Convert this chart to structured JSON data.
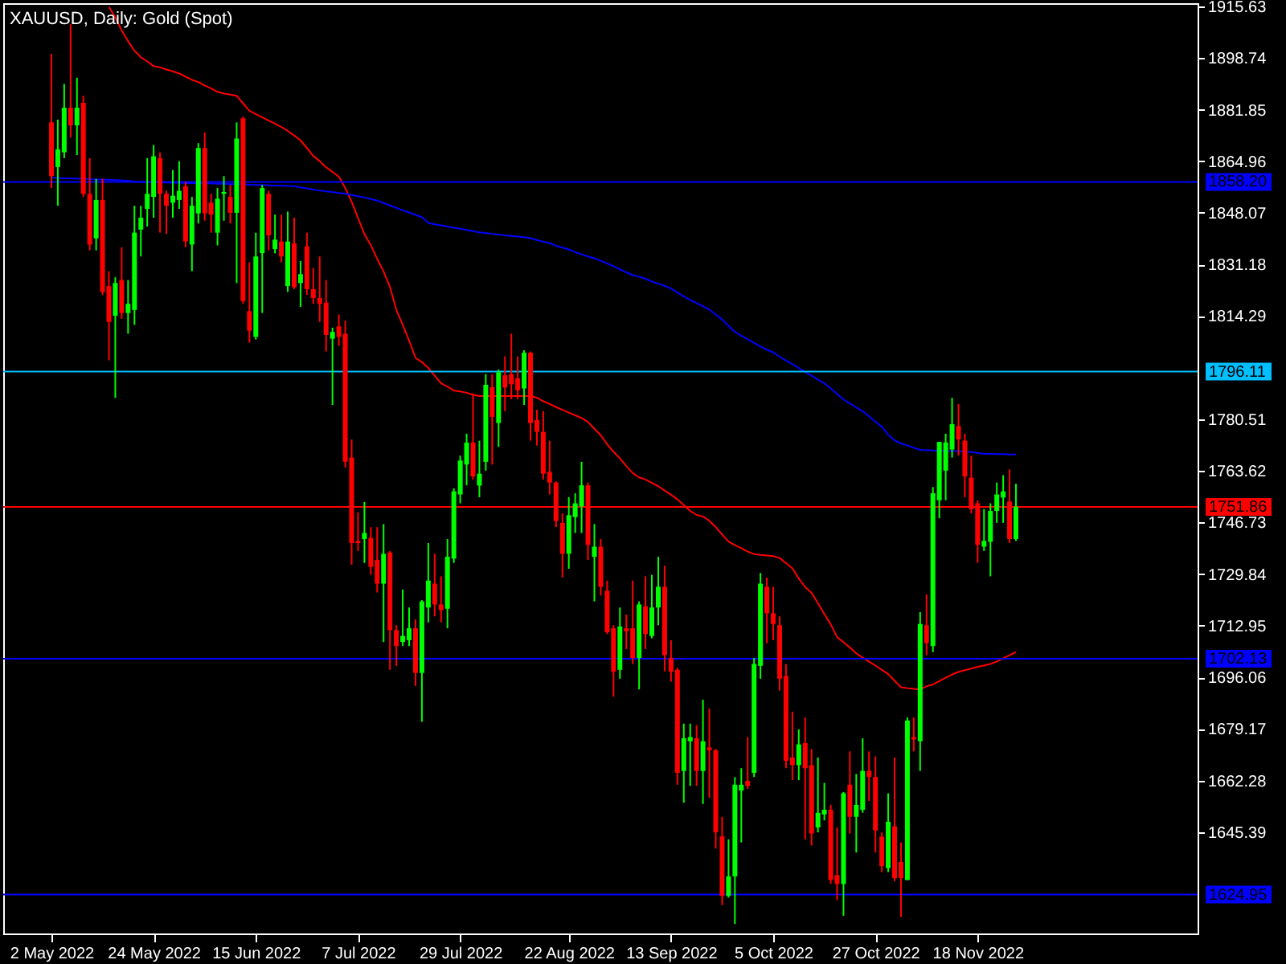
{
  "chart_data": {
    "type": "candlestick",
    "title": "XAUUSD, Daily:  Gold (Spot)",
    "categories": [
      "2 May 2022",
      null,
      null,
      null,
      null,
      null,
      null,
      null,
      null,
      null,
      null,
      null,
      null,
      null,
      null,
      null,
      "24 May 2022",
      null,
      null,
      null,
      null,
      null,
      null,
      null,
      null,
      null,
      null,
      null,
      null,
      null,
      null,
      null,
      "15 Jun 2022",
      null,
      null,
      null,
      null,
      null,
      null,
      null,
      null,
      null,
      null,
      null,
      null,
      null,
      null,
      null,
      "7 Jul 2022",
      null,
      null,
      null,
      null,
      null,
      null,
      null,
      null,
      null,
      null,
      null,
      null,
      null,
      null,
      null,
      "29 Jul 2022",
      null,
      null,
      null,
      null,
      null,
      null,
      null,
      null,
      null,
      null,
      null,
      null,
      null,
      null,
      null,
      null,
      "22 Aug 2022",
      null,
      null,
      null,
      null,
      null,
      null,
      null,
      null,
      null,
      null,
      null,
      null,
      null,
      null,
      null,
      "13 Sep 2022",
      null,
      null,
      null,
      null,
      null,
      null,
      null,
      null,
      null,
      null,
      null,
      null,
      null,
      null,
      null,
      "5 Oct 2022",
      null,
      null,
      null,
      null,
      null,
      null,
      null,
      null,
      null,
      null,
      null,
      null,
      null,
      null,
      null,
      "27 Oct 2022",
      null,
      null,
      null,
      null,
      null,
      null,
      null,
      null,
      null,
      null,
      null,
      null,
      null,
      null,
      null,
      "18 Nov 2022",
      null,
      null,
      null,
      null,
      null,
      null
    ],
    "ylim": [
      1612.2,
      1916.7
    ],
    "yticks": [
      1915.63,
      1898.74,
      1881.85,
      1864.96,
      1848.07,
      1831.18,
      1814.29,
      1780.51,
      1763.62,
      1746.73,
      1729.84,
      1712.95,
      1696.06,
      1679.17,
      1662.28,
      1645.39
    ],
    "grid": false,
    "ohlc": [
      [
        1877.7,
        1900.1,
        1856.2,
        1860.1
      ],
      [
        1863.1,
        1878.6,
        1850.4,
        1868.9
      ],
      [
        1867.9,
        1890.3,
        1866.0,
        1882.5
      ],
      [
        1882.5,
        1909.8,
        1872.8,
        1876.7
      ],
      [
        1876.7,
        1892.3,
        1867.0,
        1882.5
      ],
      [
        1884.1,
        1886.4,
        1853.3,
        1854.3
      ],
      [
        1854.3,
        1866.0,
        1835.8,
        1837.7
      ],
      [
        1839.7,
        1859.2,
        1835.8,
        1852.3
      ],
      [
        1852.3,
        1859.2,
        1821.2,
        1822.2
      ],
      [
        1824.1,
        1829.0,
        1799.8,
        1812.4
      ],
      [
        1814.4,
        1827.0,
        1787.5,
        1825.1
      ],
      [
        1826.1,
        1836.8,
        1813.4,
        1815.3
      ],
      [
        1815.3,
        1826.1,
        1808.5,
        1818.3
      ],
      [
        1816.3,
        1850.4,
        1811.4,
        1841.6
      ],
      [
        1842.6,
        1850.4,
        1833.8,
        1846.5
      ],
      [
        1849.4,
        1866.0,
        1843.6,
        1854.3
      ],
      [
        1853.3,
        1870.3,
        1846.5,
        1866.6
      ],
      [
        1866.0,
        1867.9,
        1841.6,
        1854.3
      ],
      [
        1854.3,
        1855.3,
        1841.2,
        1850.4
      ],
      [
        1851.4,
        1862.1,
        1846.5,
        1853.7
      ],
      [
        1852.3,
        1865.0,
        1849.4,
        1855.3
      ],
      [
        1856.8,
        1858.2,
        1836.8,
        1838.7
      ],
      [
        1837.7,
        1853.3,
        1829.0,
        1850.4
      ],
      [
        1847.9,
        1870.9,
        1844.6,
        1869.3
      ],
      [
        1869.3,
        1874.4,
        1845.5,
        1847.9
      ],
      [
        1851.4,
        1854.3,
        1841.6,
        1847.5
      ],
      [
        1841.6,
        1856.2,
        1837.4,
        1852.7
      ],
      [
        1854.3,
        1860.1,
        1845.5,
        1854.9
      ],
      [
        1853.3,
        1857.2,
        1844.6,
        1848.1
      ],
      [
        1848.1,
        1877.7,
        1825.1,
        1872.4
      ],
      [
        1879.0,
        1879.6,
        1818.3,
        1819.2
      ],
      [
        1815.9,
        1831.9,
        1805.6,
        1809.5
      ],
      [
        1807.5,
        1841.6,
        1806.6,
        1833.8
      ],
      [
        1834.9,
        1857.2,
        1815.3,
        1856.2
      ],
      [
        1854.3,
        1855.3,
        1835.8,
        1840.7
      ],
      [
        1836.2,
        1847.5,
        1834.8,
        1839.3
      ],
      [
        1838.7,
        1847.5,
        1831.9,
        1833.8
      ],
      [
        1824.1,
        1848.5,
        1822.2,
        1838.7
      ],
      [
        1838.1,
        1846.5,
        1823.1,
        1823.7
      ],
      [
        1825.1,
        1832.3,
        1817.3,
        1828.0
      ],
      [
        1837.1,
        1841.6,
        1821.2,
        1823.1
      ],
      [
        1823.1,
        1830.0,
        1818.3,
        1820.2
      ],
      [
        1820.2,
        1833.8,
        1812.4,
        1818.3
      ],
      [
        1818.7,
        1826.1,
        1802.7,
        1808.1
      ],
      [
        1806.9,
        1810.5,
        1785.2,
        1809.1
      ],
      [
        1810.9,
        1814.8,
        1804.6,
        1807.5
      ],
      [
        1808.5,
        1812.8,
        1764.7,
        1766.6
      ],
      [
        1768.0,
        1773.9,
        1732.9,
        1740.0
      ],
      [
        1740.7,
        1750.1,
        1737.4,
        1740.0
      ],
      [
        1741.3,
        1753.4,
        1733.5,
        1743.3
      ],
      [
        1741.7,
        1745.2,
        1729.6,
        1732.2
      ],
      [
        1734.5,
        1745.2,
        1723.8,
        1726.7
      ],
      [
        1726.7,
        1746.2,
        1707.6,
        1736.5
      ],
      [
        1736.9,
        1737.4,
        1698.5,
        1711.5
      ],
      [
        1711.5,
        1713.1,
        1699.8,
        1706.3
      ],
      [
        1707.6,
        1724.8,
        1706.3,
        1709.6
      ],
      [
        1708.2,
        1718.9,
        1706.3,
        1712.1
      ],
      [
        1712.1,
        1715.0,
        1693.2,
        1697.5
      ],
      [
        1697.5,
        1721.3,
        1681.5,
        1720.9
      ],
      [
        1718.9,
        1740.0,
        1714.0,
        1727.7
      ],
      [
        1726.7,
        1736.5,
        1716.0,
        1719.9
      ],
      [
        1719.9,
        1729.1,
        1714.0,
        1718.0
      ],
      [
        1718.5,
        1741.3,
        1712.1,
        1735.5
      ],
      [
        1734.9,
        1757.9,
        1733.5,
        1756.9
      ],
      [
        1755.9,
        1768.6,
        1753.0,
        1767.0
      ],
      [
        1765.7,
        1775.8,
        1758.9,
        1772.9
      ],
      [
        1772.9,
        1789.0,
        1760.8,
        1761.8
      ],
      [
        1758.8,
        1773.5,
        1755.0,
        1762.7
      ],
      [
        1766.6,
        1795.3,
        1763.7,
        1791.8
      ],
      [
        1791.0,
        1795.3,
        1765.7,
        1781.3
      ],
      [
        1779.3,
        1796.8,
        1771.5,
        1795.9
      ],
      [
        1794.9,
        1801.1,
        1783.2,
        1790.9
      ],
      [
        1795.3,
        1808.5,
        1787.1,
        1792.0
      ],
      [
        1793.9,
        1801.1,
        1787.1,
        1790.0
      ],
      [
        1790.6,
        1803.1,
        1785.2,
        1802.3
      ],
      [
        1802.3,
        1802.7,
        1773.5,
        1779.3
      ],
      [
        1780.3,
        1783.6,
        1771.9,
        1776.4
      ],
      [
        1776.4,
        1783.2,
        1760.8,
        1762.7
      ],
      [
        1763.3,
        1773.5,
        1755.9,
        1759.8
      ],
      [
        1759.8,
        1760.2,
        1745.2,
        1747.2
      ],
      [
        1746.6,
        1749.7,
        1728.7,
        1736.5
      ],
      [
        1736.5,
        1755.0,
        1731.6,
        1749.1
      ],
      [
        1748.5,
        1756.3,
        1743.3,
        1753.0
      ],
      [
        1752.0,
        1766.6,
        1743.3,
        1758.9
      ],
      [
        1758.9,
        1759.8,
        1734.5,
        1739.4
      ],
      [
        1735.5,
        1746.2,
        1720.9,
        1738.8
      ],
      [
        1738.8,
        1741.3,
        1722.8,
        1725.7
      ],
      [
        1724.4,
        1727.7,
        1710.2,
        1710.8
      ],
      [
        1712.1,
        1713.1,
        1689.7,
        1697.9
      ],
      [
        1698.5,
        1718.9,
        1695.6,
        1712.7
      ],
      [
        1712.1,
        1716.6,
        1705.3,
        1711.1
      ],
      [
        1712.1,
        1727.7,
        1700.4,
        1702.4
      ],
      [
        1702.4,
        1720.9,
        1692.1,
        1719.9
      ],
      [
        1719.3,
        1729.1,
        1705.3,
        1710.2
      ],
      [
        1709.6,
        1729.6,
        1708.8,
        1718.9
      ],
      [
        1718.9,
        1735.5,
        1713.1,
        1725.7
      ],
      [
        1725.7,
        1732.6,
        1698.0,
        1703.3
      ],
      [
        1702.4,
        1708.2,
        1694.6,
        1697.9
      ],
      [
        1698.5,
        1699.1,
        1660.9,
        1664.8
      ],
      [
        1665.4,
        1680.9,
        1655.0,
        1676.1
      ],
      [
        1675.1,
        1680.9,
        1660.5,
        1676.5
      ],
      [
        1676.1,
        1680.4,
        1660.5,
        1665.4
      ],
      [
        1665.4,
        1688.7,
        1654.6,
        1675.1
      ],
      [
        1673.1,
        1685.8,
        1656.6,
        1672.2
      ],
      [
        1672.2,
        1672.6,
        1640.0,
        1645.3
      ],
      [
        1644.0,
        1650.4,
        1621.5,
        1624.5
      ],
      [
        1624.5,
        1643.0,
        1623.9,
        1630.9
      ],
      [
        1630.9,
        1663.4,
        1615.3,
        1660.9
      ],
      [
        1659.0,
        1666.3,
        1642.0,
        1660.9
      ],
      [
        1662.1,
        1676.5,
        1659.5,
        1660.5
      ],
      [
        1664.8,
        1702.4,
        1663.4,
        1700.4
      ],
      [
        1699.8,
        1730.2,
        1695.6,
        1726.7
      ],
      [
        1725.7,
        1728.7,
        1707.2,
        1717.0
      ],
      [
        1717.0,
        1725.7,
        1708.2,
        1713.5
      ],
      [
        1713.1,
        1716.0,
        1691.7,
        1695.6
      ],
      [
        1696.5,
        1700.4,
        1666.3,
        1668.7
      ],
      [
        1669.8,
        1684.8,
        1662.4,
        1667.3
      ],
      [
        1667.3,
        1679.0,
        1662.4,
        1674.1
      ],
      [
        1674.5,
        1682.9,
        1643.0,
        1666.3
      ],
      [
        1667.3,
        1672.6,
        1641.0,
        1644.9
      ],
      [
        1646.9,
        1669.8,
        1645.3,
        1651.7
      ],
      [
        1651.2,
        1661.5,
        1649.2,
        1652.7
      ],
      [
        1652.7,
        1654.3,
        1628.4,
        1629.7
      ],
      [
        1631.3,
        1646.9,
        1623.1,
        1628.4
      ],
      [
        1628.4,
        1658.5,
        1618.0,
        1658.1
      ],
      [
        1660.9,
        1671.8,
        1644.9,
        1650.4
      ],
      [
        1650.4,
        1664.4,
        1638.7,
        1654.3
      ],
      [
        1652.7,
        1676.1,
        1651.7,
        1665.4
      ],
      [
        1665.4,
        1671.8,
        1655.6,
        1663.4
      ],
      [
        1663.4,
        1670.2,
        1638.7,
        1645.9
      ],
      [
        1643.9,
        1645.3,
        1632.3,
        1634.2
      ],
      [
        1633.6,
        1658.1,
        1632.3,
        1648.8
      ],
      [
        1647.3,
        1669.8,
        1629.3,
        1630.3
      ],
      [
        1635.6,
        1642.0,
        1617.6,
        1630.3
      ],
      [
        1629.7,
        1682.9,
        1629.7,
        1681.9
      ],
      [
        1676.5,
        1682.9,
        1671.8,
        1675.7
      ],
      [
        1675.1,
        1717.4,
        1665.4,
        1713.5
      ],
      [
        1713.1,
        1723.2,
        1703.3,
        1707.2
      ],
      [
        1706.3,
        1758.3,
        1704.3,
        1756.3
      ],
      [
        1754.0,
        1773.1,
        1748.1,
        1773.1
      ],
      [
        1763.7,
        1775.8,
        1754.0,
        1772.9
      ],
      [
        1770.6,
        1787.5,
        1768.0,
        1778.9
      ],
      [
        1778.3,
        1785.5,
        1768.6,
        1773.9
      ],
      [
        1773.5,
        1775.8,
        1755.0,
        1761.8
      ],
      [
        1761.4,
        1768.6,
        1749.7,
        1751.1
      ],
      [
        1753.0,
        1754.0,
        1733.5,
        1739.4
      ],
      [
        1738.8,
        1751.1,
        1737.4,
        1740.7
      ],
      [
        1740.4,
        1753.0,
        1729.1,
        1750.5
      ],
      [
        1750.5,
        1759.8,
        1746.6,
        1755.9
      ],
      [
        1754.9,
        1762.2,
        1746.6,
        1756.9
      ],
      [
        1753.6,
        1764.1,
        1740.0,
        1741.3
      ],
      [
        1741.3,
        1759.4,
        1740.7,
        1751.9
      ]
    ],
    "series": [
      {
        "type": "line",
        "color": "#ff0000",
        "values": [
          null,
          null,
          null,
          null,
          null,
          null,
          null,
          null,
          null,
          1915.5,
          1912.0,
          1907.8,
          1904.3,
          1901.1,
          1899.0,
          1897.7,
          1896.1,
          1895.7,
          1895.0,
          1894.4,
          1893.7,
          1892.7,
          1891.6,
          1890.9,
          1889.8,
          1888.8,
          1887.7,
          1887.1,
          1886.8,
          1886.4,
          1883.9,
          1881.5,
          1880.4,
          1879.4,
          1878.3,
          1877.3,
          1876.2,
          1874.9,
          1873.4,
          1871.8,
          1869.3,
          1866.7,
          1865.0,
          1863.0,
          1861.5,
          1859.9,
          1856.2,
          1851.7,
          1846.4,
          1841.1,
          1837.5,
          1833.0,
          1828.9,
          1823.8,
          1816.3,
          1811.4,
          1806.2,
          1800.6,
          1799.2,
          1797.3,
          1794.8,
          1792.3,
          1791.2,
          1789.9,
          1789.6,
          1789.2,
          1788.5,
          1788.1,
          1788.1,
          1788.1,
          1788.1,
          1788.1,
          1788.1,
          1788.1,
          1788.1,
          1788.1,
          1787.6,
          1786.4,
          1785.5,
          1784.5,
          1783.6,
          1782.7,
          1781.8,
          1780.9,
          1779.6,
          1777.4,
          1775.3,
          1772.3,
          1769.9,
          1767.7,
          1765.2,
          1762.9,
          1761.5,
          1760.8,
          1759.7,
          1758.6,
          1757.2,
          1755.8,
          1754.3,
          1752.4,
          1750.5,
          1749.2,
          1748.7,
          1747.3,
          1745.2,
          1742.8,
          1740.5,
          1739.3,
          1738.3,
          1737.2,
          1736.4,
          1736.1,
          1735.9,
          1735.7,
          1735.1,
          1733.4,
          1731.7,
          1728.4,
          1725.6,
          1723.7,
          1720.3,
          1716.8,
          1713.4,
          1709.2,
          1707.5,
          1705.8,
          1703.9,
          1702.5,
          1701.2,
          1699.9,
          1698.5,
          1697.1,
          1694.9,
          1692.8,
          1692.5,
          1692.3,
          1692.1,
          1693.1,
          1693.7,
          1694.8,
          1695.9,
          1697.0,
          1697.8,
          1698.4,
          1698.9,
          1699.5,
          1699.9,
          1700.4,
          1701.2,
          1702.3,
          1703.3,
          1704.3
        ]
      },
      {
        "type": "line",
        "color": "#0000ff",
        "values": [
          1859.6,
          1859.5,
          1859.4,
          1859.4,
          1859.3,
          1859.2,
          1859.1,
          1859.0,
          1859.0,
          1858.9,
          1858.8,
          1858.7,
          1858.5,
          1858.3,
          1858.2,
          1858.1,
          1858.1,
          1858.0,
          1858.0,
          1857.9,
          1857.9,
          1857.8,
          1857.8,
          1857.7,
          1857.7,
          1857.7,
          1857.6,
          1857.6,
          1857.5,
          1857.5,
          1857.4,
          1857.3,
          1857.2,
          1857.2,
          1857.1,
          1857.0,
          1857.0,
          1856.9,
          1856.8,
          1856.4,
          1856.1,
          1855.7,
          1855.4,
          1855.1,
          1854.9,
          1854.6,
          1854.4,
          1853.9,
          1853.5,
          1853.1,
          1852.6,
          1852.1,
          1851.3,
          1850.5,
          1849.7,
          1848.9,
          1848.2,
          1847.4,
          1846.7,
          1844.8,
          1844.3,
          1844.0,
          1843.6,
          1843.2,
          1842.9,
          1842.5,
          1842.1,
          1841.7,
          1841.5,
          1841.2,
          1841.0,
          1840.7,
          1840.5,
          1840.3,
          1840.1,
          1839.8,
          1839.2,
          1838.6,
          1838.2,
          1837.3,
          1836.7,
          1836.1,
          1835.2,
          1834.5,
          1833.8,
          1833.2,
          1832.4,
          1831.5,
          1830.6,
          1829.6,
          1828.6,
          1827.7,
          1827.2,
          1826.5,
          1825.6,
          1824.9,
          1824.2,
          1823.3,
          1822.0,
          1820.7,
          1819.6,
          1818.5,
          1817.5,
          1816.4,
          1814.8,
          1813.2,
          1811.1,
          1809.1,
          1807.9,
          1806.7,
          1805.5,
          1804.3,
          1803.3,
          1802.4,
          1801.0,
          1799.7,
          1798.6,
          1797.3,
          1796.0,
          1794.8,
          1793.5,
          1792.3,
          1790.6,
          1788.8,
          1787.0,
          1785.7,
          1784.4,
          1783.1,
          1781.5,
          1779.7,
          1778.1,
          1775.4,
          1773.6,
          1772.6,
          1771.9,
          1771.2,
          1770.5,
          1770.4,
          1770.3,
          1770.2,
          1770.2,
          1770.1,
          1770.1,
          1770.0,
          1769.8,
          1769.5,
          1769.2,
          1769.2,
          1769.1,
          1769.1,
          1769.0,
          1769.0
        ]
      }
    ],
    "ref_lines": [
      {
        "axis": "y",
        "value": 1858.2,
        "label": "1858.20",
        "color": "#0000ff"
      },
      {
        "axis": "y",
        "value": 1796.11,
        "label": "1796.11",
        "color": "#00bfff"
      },
      {
        "axis": "y",
        "value": 1751.86,
        "label": "1751.86",
        "color": "#ff0000"
      },
      {
        "axis": "y",
        "value": 1702.13,
        "label": "1702.13",
        "color": "#0000ff"
      },
      {
        "axis": "y",
        "value": 1624.95,
        "label": "1624.95",
        "color": "#0000ff"
      }
    ]
  }
}
